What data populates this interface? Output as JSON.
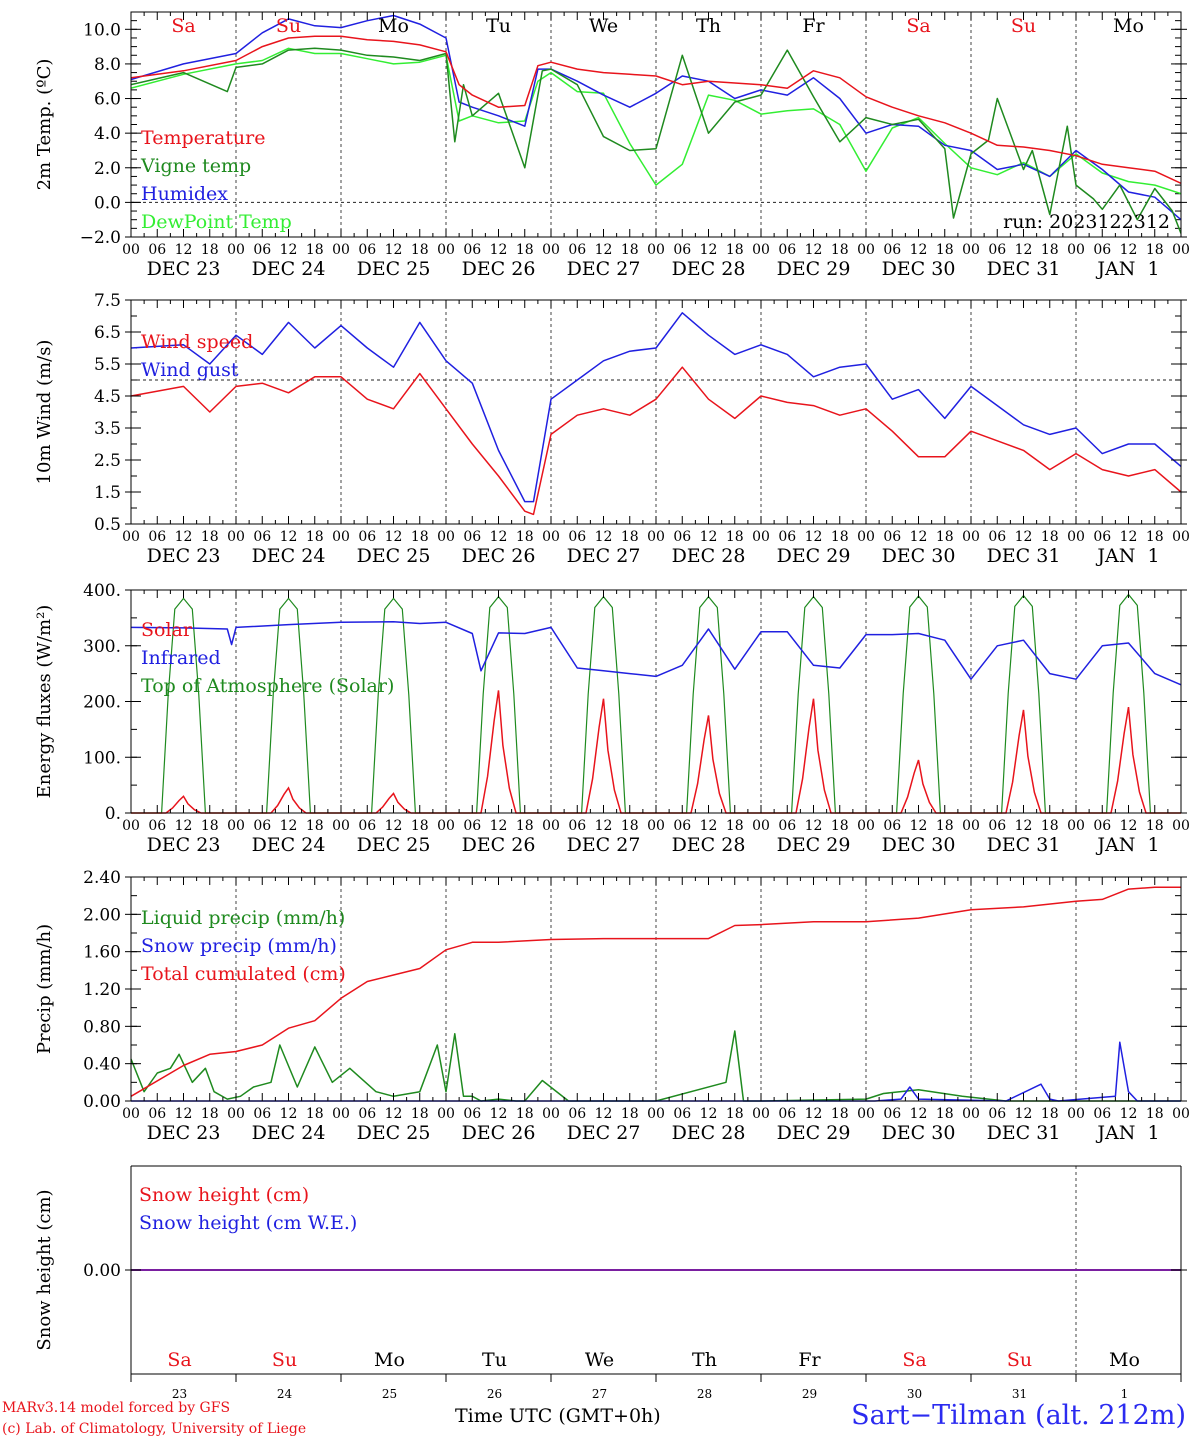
{
  "footer": {
    "model_line": "MARv3.14 model forced by GFS",
    "credit_line": "(c) Lab. of Climatology, University of Liege",
    "xlabel": "Time UTC (GMT+0h)",
    "station": "Sart−Tilman (alt. 212m)"
  },
  "colors": {
    "red": "#e8141c",
    "darkgreen": "#1f8a1f",
    "blue": "#2020e0",
    "lightgreen": "#33ee33",
    "purple": "#7a1fa0"
  },
  "chart_data": [
    {
      "type": "line",
      "ylabel": "2m Temp. (ºC)",
      "ylim": [
        -2.0,
        11.0
      ],
      "yticks": [
        "−2.0",
        "0.0",
        "2.0",
        "4.0",
        "6.0",
        "8.0",
        "10.0"
      ],
      "ytick_values": [
        -2,
        0,
        2,
        4,
        6,
        8,
        10
      ],
      "reference_line": 0,
      "annotation": "run: 2023122312",
      "day_names": [
        "Sa",
        "Su",
        "Mo",
        "Tu",
        "We",
        "Th",
        "Fr",
        "Sa",
        "Su",
        "Mo"
      ],
      "day_name_colors": [
        "red",
        "red",
        "black",
        "black",
        "black",
        "black",
        "black",
        "red",
        "red",
        "black"
      ],
      "x_hours": [
        "00",
        "06",
        "12",
        "18"
      ],
      "dates": [
        "DEC 23",
        "DEC 24",
        "DEC 25",
        "DEC 26",
        "DEC 27",
        "DEC 28",
        "DEC 29",
        "DEC 30",
        "DEC 31",
        "JAN  1"
      ],
      "x_unit": "hours since DEC 23 00 UTC",
      "series": [
        {
          "name": "Temperature",
          "color": "red",
          "x": [
            0,
            12,
            24,
            30,
            36,
            42,
            48,
            54,
            60,
            66,
            72,
            75,
            78,
            84,
            90,
            93,
            96,
            102,
            108,
            114,
            120,
            126,
            132,
            138,
            144,
            150,
            156,
            162,
            168,
            174,
            180,
            186,
            192,
            198,
            204,
            210,
            216,
            222,
            228,
            234,
            240
          ],
          "y": [
            7.2,
            7.6,
            8.2,
            9.0,
            9.5,
            9.6,
            9.6,
            9.4,
            9.3,
            9.1,
            8.7,
            6.8,
            6.2,
            5.5,
            5.6,
            7.9,
            8.1,
            7.7,
            7.5,
            7.4,
            7.3,
            6.8,
            7.0,
            6.9,
            6.8,
            6.6,
            7.6,
            7.2,
            6.1,
            5.5,
            5.0,
            4.6,
            4.0,
            3.3,
            3.2,
            3.0,
            2.7,
            2.2,
            2.0,
            1.8,
            1.1
          ]
        },
        {
          "name": "Vigne temp",
          "color": "darkgreen",
          "x": [
            0,
            12,
            22,
            24,
            30,
            36,
            42,
            48,
            54,
            60,
            66,
            72,
            74,
            76,
            78,
            84,
            90,
            94,
            96,
            102,
            108,
            114,
            120,
            126,
            132,
            138,
            144,
            150,
            156,
            162,
            168,
            174,
            180,
            186,
            188,
            192,
            196,
            198,
            204,
            206,
            210,
            214,
            216,
            220,
            222,
            226,
            230,
            234,
            238,
            240
          ],
          "y": [
            6.8,
            7.5,
            6.4,
            7.8,
            8.0,
            8.8,
            8.9,
            8.8,
            8.5,
            8.4,
            8.2,
            8.6,
            3.5,
            6.8,
            5.0,
            6.3,
            2.0,
            7.6,
            7.7,
            6.8,
            3.8,
            3.0,
            3.1,
            8.5,
            4.0,
            5.8,
            6.2,
            8.8,
            6.1,
            3.5,
            4.9,
            4.5,
            4.8,
            3.1,
            -0.9,
            2.8,
            3.6,
            6.0,
            1.9,
            3.0,
            -0.7,
            4.4,
            1.0,
            0.2,
            -0.4,
            1.0,
            -1.0,
            0.8,
            -0.5,
            -1.8
          ]
        },
        {
          "name": "Humidex",
          "color": "blue",
          "x": [
            0,
            12,
            24,
            30,
            36,
            42,
            48,
            54,
            60,
            66,
            72,
            75,
            78,
            84,
            90,
            93,
            96,
            102,
            108,
            114,
            120,
            126,
            132,
            138,
            144,
            150,
            156,
            162,
            168,
            174,
            180,
            186,
            192,
            198,
            204,
            210,
            216,
            222,
            228,
            234,
            240
          ],
          "y": [
            7.1,
            8.0,
            8.6,
            9.8,
            10.6,
            10.2,
            10.1,
            10.5,
            10.8,
            10.3,
            9.5,
            5.8,
            5.5,
            5.0,
            4.4,
            7.7,
            7.7,
            7.0,
            6.2,
            5.5,
            6.3,
            7.3,
            7.0,
            6.0,
            6.5,
            6.2,
            7.2,
            6.0,
            4.0,
            4.5,
            4.4,
            3.3,
            3.0,
            1.9,
            2.2,
            1.5,
            3.0,
            1.9,
            0.6,
            0.3,
            -1.0
          ]
        },
        {
          "name": "DewPoint Temp",
          "color": "lightgreen",
          "x": [
            0,
            12,
            24,
            30,
            36,
            42,
            48,
            54,
            60,
            66,
            72,
            75,
            78,
            84,
            90,
            93,
            96,
            102,
            108,
            114,
            120,
            126,
            132,
            138,
            144,
            150,
            156,
            162,
            168,
            174,
            180,
            186,
            192,
            198,
            204,
            210,
            216,
            222,
            228,
            234,
            240
          ],
          "y": [
            6.6,
            7.4,
            8.0,
            8.2,
            8.9,
            8.6,
            8.6,
            8.3,
            8.0,
            8.1,
            8.5,
            4.7,
            5.0,
            4.6,
            4.7,
            7.0,
            7.5,
            6.4,
            6.3,
            3.4,
            1.0,
            2.2,
            6.2,
            5.9,
            5.1,
            5.3,
            5.4,
            4.5,
            1.8,
            4.3,
            4.9,
            3.4,
            2.0,
            1.6,
            2.3,
            1.5,
            2.8,
            1.7,
            1.2,
            1.0,
            0.5
          ]
        }
      ]
    },
    {
      "type": "line",
      "ylabel": "10m Wind (m/s)",
      "ylim": [
        0.5,
        7.5
      ],
      "yticks": [
        "0.5",
        "1.5",
        "2.5",
        "3.5",
        "4.5",
        "5.5",
        "6.5",
        "7.5"
      ],
      "ytick_values": [
        0.5,
        1.5,
        2.5,
        3.5,
        4.5,
        5.5,
        6.5,
        7.5
      ],
      "reference_line": 5.0,
      "x_hours": [
        "00",
        "06",
        "12",
        "18"
      ],
      "dates": [
        "DEC 23",
        "DEC 24",
        "DEC 25",
        "DEC 26",
        "DEC 27",
        "DEC 28",
        "DEC 29",
        "DEC 30",
        "DEC 31",
        "JAN  1"
      ],
      "series": [
        {
          "name": "Wind speed",
          "color": "red",
          "x": [
            0,
            12,
            18,
            24,
            30,
            36,
            42,
            48,
            54,
            60,
            66,
            72,
            78,
            84,
            90,
            92,
            96,
            102,
            108,
            114,
            120,
            126,
            132,
            138,
            144,
            150,
            156,
            162,
            168,
            174,
            180,
            186,
            192,
            198,
            204,
            210,
            216,
            222,
            228,
            234,
            240
          ],
          "y": [
            4.5,
            4.8,
            4.0,
            4.8,
            4.9,
            4.6,
            5.1,
            5.1,
            4.4,
            4.1,
            5.2,
            4.1,
            3.0,
            2.0,
            0.9,
            0.8,
            3.3,
            3.9,
            4.1,
            3.9,
            4.4,
            5.4,
            4.4,
            3.8,
            4.5,
            4.3,
            4.2,
            3.9,
            4.1,
            3.4,
            2.6,
            2.6,
            3.4,
            3.1,
            2.8,
            2.2,
            2.7,
            2.2,
            2.0,
            2.2,
            1.5
          ]
        },
        {
          "name": "Wind gust",
          "color": "blue",
          "x": [
            0,
            12,
            18,
            24,
            30,
            36,
            42,
            48,
            54,
            60,
            66,
            72,
            78,
            84,
            90,
            92,
            96,
            102,
            108,
            114,
            120,
            126,
            132,
            138,
            144,
            150,
            156,
            162,
            168,
            174,
            180,
            186,
            192,
            198,
            204,
            210,
            216,
            222,
            228,
            234,
            240
          ],
          "y": [
            6.0,
            6.1,
            5.5,
            6.4,
            5.8,
            6.8,
            6.0,
            6.7,
            6.0,
            5.4,
            6.8,
            5.6,
            4.9,
            2.8,
            1.2,
            1.2,
            4.4,
            5.0,
            5.6,
            5.9,
            6.0,
            7.1,
            6.4,
            5.8,
            6.1,
            5.8,
            5.1,
            5.4,
            5.5,
            4.4,
            4.7,
            3.8,
            4.8,
            4.2,
            3.6,
            3.3,
            3.5,
            2.7,
            3.0,
            3.0,
            2.3
          ]
        }
      ]
    },
    {
      "type": "line",
      "ylabel": "Energy fluxes (W/m²)",
      "ylim": [
        0,
        400
      ],
      "yticks": [
        "0.",
        "100.",
        "200.",
        "300.",
        "400."
      ],
      "ytick_values": [
        0,
        100,
        200,
        300,
        400
      ],
      "x_hours": [
        "00",
        "06",
        "12",
        "18"
      ],
      "dates": [
        "DEC 23",
        "DEC 24",
        "DEC 25",
        "DEC 26",
        "DEC 27",
        "DEC 28",
        "DEC 29",
        "DEC 30",
        "DEC 31",
        "JAN  1"
      ],
      "daily_peak_hour": 12,
      "series": [
        {
          "name": "Solar",
          "color": "red",
          "daily_peaks": [
            30,
            45,
            35,
            220,
            205,
            175,
            205,
            95,
            185,
            190
          ]
        },
        {
          "name": "Infrared",
          "color": "blue",
          "x": [
            0,
            12,
            22,
            23,
            24,
            36,
            48,
            60,
            66,
            72,
            78,
            80,
            84,
            90,
            96,
            102,
            108,
            114,
            120,
            126,
            132,
            138,
            144,
            150,
            156,
            162,
            168,
            174,
            180,
            186,
            192,
            198,
            204,
            210,
            216,
            222,
            228,
            234,
            240
          ],
          "y": [
            333,
            332,
            330,
            302,
            333,
            338,
            342,
            343,
            340,
            342,
            322,
            255,
            323,
            322,
            333,
            260,
            255,
            250,
            245,
            265,
            330,
            258,
            325,
            325,
            265,
            260,
            320,
            320,
            322,
            310,
            240,
            300,
            310,
            250,
            240,
            300,
            305,
            250,
            230
          ]
        },
        {
          "name": "Top of Atmosphere (Solar)",
          "color": "darkgreen",
          "daily_peaks": [
            385,
            385,
            385,
            388,
            388,
            388,
            388,
            389,
            390,
            392
          ]
        }
      ]
    },
    {
      "type": "line",
      "ylabel": "Precip (mm/h)",
      "ylim": [
        0,
        2.4
      ],
      "yticks": [
        "0.00",
        "0.40",
        "0.80",
        "1.20",
        "1.60",
        "2.00",
        "2.40"
      ],
      "ytick_values": [
        0,
        0.4,
        0.8,
        1.2,
        1.6,
        2.0,
        2.4
      ],
      "x_hours": [
        "00",
        "06",
        "12",
        "18"
      ],
      "dates": [
        "DEC 23",
        "DEC 24",
        "DEC 25",
        "DEC 26",
        "DEC 27",
        "DEC 28",
        "DEC 29",
        "DEC 30",
        "DEC 31",
        "JAN  1"
      ],
      "series": [
        {
          "name": "Liquid precip (mm/h)",
          "color": "darkgreen",
          "x": [
            0,
            3,
            6,
            9,
            11,
            14,
            17,
            19,
            22,
            25,
            28,
            32,
            34,
            38,
            42,
            46,
            50,
            56,
            60,
            66,
            70,
            72,
            74,
            76,
            78,
            80,
            84,
            88,
            90,
            94,
            100,
            120,
            136,
            138,
            140,
            144,
            168,
            172,
            180,
            190,
            196,
            200,
            204,
            230,
            240
          ],
          "y": [
            0.45,
            0.1,
            0.3,
            0.35,
            0.5,
            0.2,
            0.35,
            0.1,
            0.02,
            0.05,
            0.15,
            0.2,
            0.6,
            0.15,
            0.58,
            0.2,
            0.35,
            0.1,
            0.05,
            0.1,
            0.6,
            0.1,
            0.72,
            0.05,
            0.05,
            0.0,
            0.02,
            0.0,
            0.0,
            0.22,
            0.0,
            0.0,
            0.2,
            0.75,
            0.0,
            0.0,
            0.02,
            0.08,
            0.12,
            0.05,
            0.02,
            0.0,
            0.0,
            0.0,
            0.0
          ]
        },
        {
          "name": "Snow precip (mm/h)",
          "color": "blue",
          "x": [
            0,
            170,
            176,
            178,
            180,
            200,
            208,
            210,
            212,
            225,
            226,
            228,
            230,
            240
          ],
          "y": [
            0,
            0,
            0.02,
            0.15,
            0.02,
            0.0,
            0.18,
            0.02,
            0.0,
            0.05,
            0.63,
            0.1,
            0.0,
            0.0
          ]
        },
        {
          "name": "Total cumulated (cm)",
          "color": "red",
          "x": [
            0,
            12,
            18,
            24,
            30,
            36,
            42,
            48,
            54,
            60,
            66,
            72,
            78,
            84,
            96,
            108,
            120,
            132,
            138,
            144,
            156,
            168,
            180,
            192,
            204,
            216,
            222,
            228,
            234,
            240
          ],
          "y": [
            0.05,
            0.38,
            0.5,
            0.53,
            0.6,
            0.78,
            0.86,
            1.1,
            1.28,
            1.35,
            1.42,
            1.62,
            1.7,
            1.7,
            1.73,
            1.74,
            1.74,
            1.74,
            1.88,
            1.89,
            1.92,
            1.92,
            1.96,
            2.05,
            2.08,
            2.14,
            2.16,
            2.27,
            2.29,
            2.29
          ]
        }
      ]
    },
    {
      "type": "line",
      "ylabel": "Snow height (cm)",
      "yticks": [
        "0.00"
      ],
      "ytick_values": [
        0
      ],
      "day_names": [
        "Sa",
        "Su",
        "Mo",
        "Tu",
        "We",
        "Th",
        "Fr",
        "Sa",
        "Su",
        "Mo"
      ],
      "day_name_colors": [
        "red",
        "red",
        "black",
        "black",
        "black",
        "black",
        "black",
        "red",
        "red",
        "black"
      ],
      "day_numbers": [
        "23",
        "24",
        "25",
        "26",
        "27",
        "28",
        "29",
        "30",
        "31",
        "1"
      ],
      "series": [
        {
          "name": "Snow height (cm)",
          "color": "red",
          "y": [
            0,
            0
          ]
        },
        {
          "name": "Snow height (cm W.E.)",
          "color": "blue",
          "y": [
            0,
            0
          ]
        }
      ]
    }
  ]
}
